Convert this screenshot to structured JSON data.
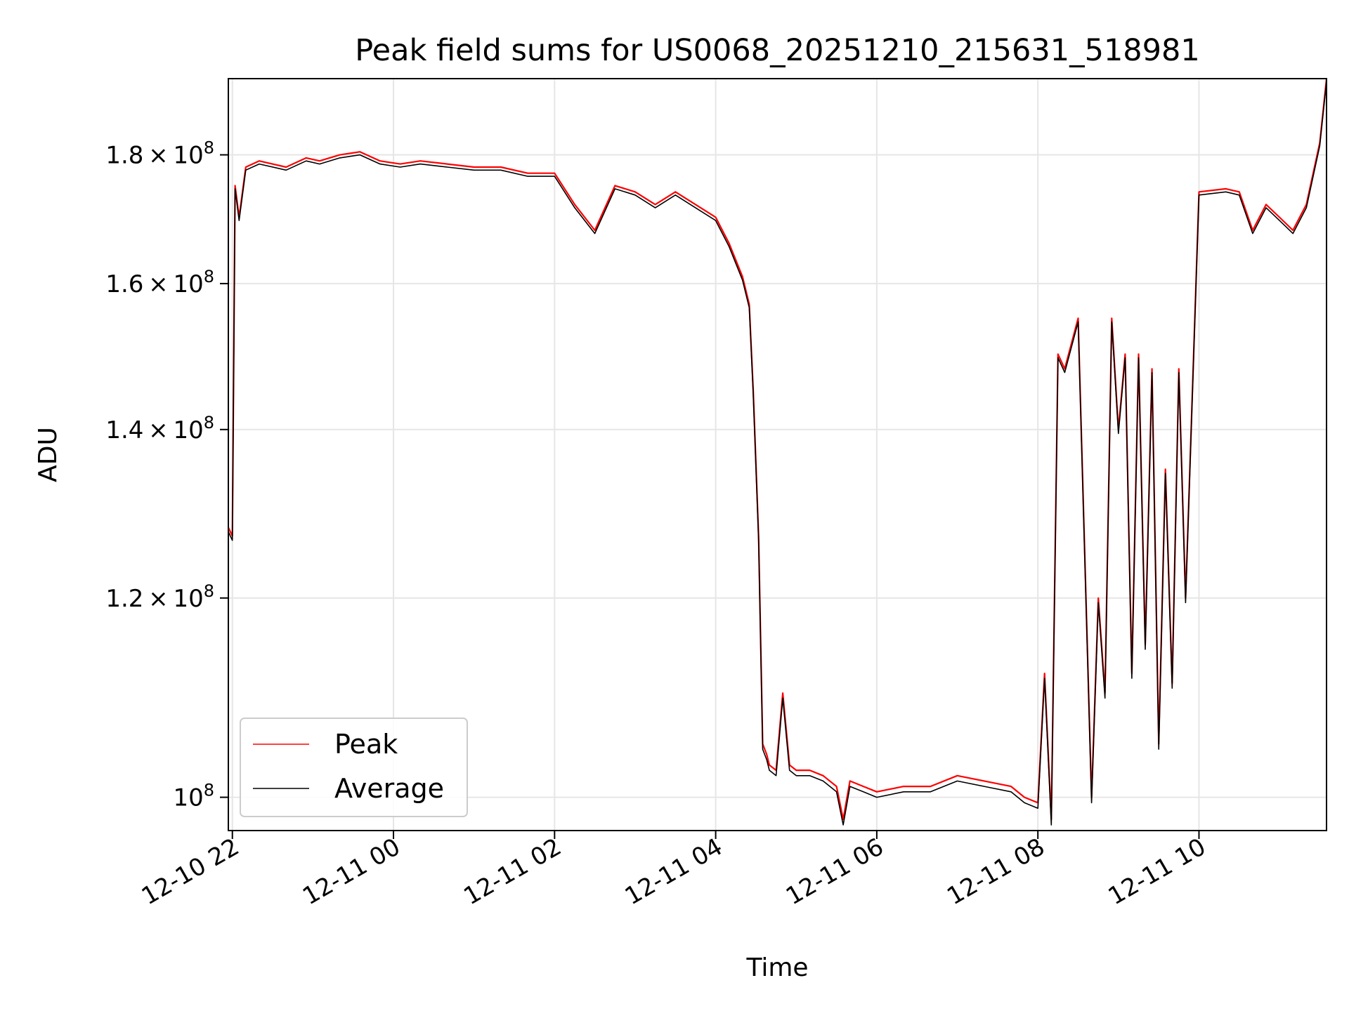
{
  "chart_data": {
    "type": "line",
    "title": "Peak field sums for US0068_20251210_215631_518981",
    "xlabel": "Time",
    "ylabel": "ADU",
    "y_scale": "log",
    "xlim": [
      "2025-12-10 21:57",
      "2025-12-11 11:35"
    ],
    "ylim": [
      97000000,
      193000000
    ],
    "grid": true,
    "legend_position": "lower-left",
    "x_ticks": [
      {
        "value": "2025-12-10 22:00",
        "label": "12-10 22"
      },
      {
        "value": "2025-12-11 00:00",
        "label": "12-11 00"
      },
      {
        "value": "2025-12-11 02:00",
        "label": "12-11 02"
      },
      {
        "value": "2025-12-11 04:00",
        "label": "12-11 04"
      },
      {
        "value": "2025-12-11 06:00",
        "label": "12-11 06"
      },
      {
        "value": "2025-12-11 08:00",
        "label": "12-11 08"
      },
      {
        "value": "2025-12-11 10:00",
        "label": "12-11 10"
      }
    ],
    "y_ticks": [
      {
        "value": 100000000,
        "mantissa": "",
        "exponent": "8"
      },
      {
        "value": 120000000,
        "mantissa": "1.2",
        "exponent": "8"
      },
      {
        "value": 140000000,
        "mantissa": "1.4",
        "exponent": "8"
      },
      {
        "value": 160000000,
        "mantissa": "1.6",
        "exponent": "8"
      },
      {
        "value": 180000000,
        "mantissa": "1.8",
        "exponent": "8"
      }
    ],
    "series": [
      {
        "name": "Peak",
        "color": "#ff0000",
        "x": [
          "2025-12-10 21:57",
          "2025-12-10 22:00",
          "2025-12-10 22:02",
          "2025-12-10 22:05",
          "2025-12-10 22:10",
          "2025-12-10 22:20",
          "2025-12-10 22:40",
          "2025-12-10 22:55",
          "2025-12-10 23:05",
          "2025-12-10 23:20",
          "2025-12-10 23:35",
          "2025-12-10 23:50",
          "2025-12-11 00:05",
          "2025-12-11 00:20",
          "2025-12-11 00:40",
          "2025-12-11 01:00",
          "2025-12-11 01:20",
          "2025-12-11 01:40",
          "2025-12-11 02:00",
          "2025-12-11 02:15",
          "2025-12-11 02:30",
          "2025-12-11 02:45",
          "2025-12-11 03:00",
          "2025-12-11 03:15",
          "2025-12-11 03:30",
          "2025-12-11 03:45",
          "2025-12-11 04:00",
          "2025-12-11 04:10",
          "2025-12-11 04:20",
          "2025-12-11 04:25",
          "2025-12-11 04:28",
          "2025-12-11 04:32",
          "2025-12-11 04:35",
          "2025-12-11 04:38",
          "2025-12-11 04:40",
          "2025-12-11 04:45",
          "2025-12-11 04:50",
          "2025-12-11 04:55",
          "2025-12-11 05:00",
          "2025-12-11 05:10",
          "2025-12-11 05:20",
          "2025-12-11 05:30",
          "2025-12-11 05:35",
          "2025-12-11 05:40",
          "2025-12-11 05:50",
          "2025-12-11 06:00",
          "2025-12-11 06:20",
          "2025-12-11 06:40",
          "2025-12-11 07:00",
          "2025-12-11 07:20",
          "2025-12-11 07:40",
          "2025-12-11 07:50",
          "2025-12-11 08:00",
          "2025-12-11 08:05",
          "2025-12-11 08:10",
          "2025-12-11 08:15",
          "2025-12-11 08:20",
          "2025-12-11 08:30",
          "2025-12-11 08:40",
          "2025-12-11 08:45",
          "2025-12-11 08:50",
          "2025-12-11 08:55",
          "2025-12-11 09:00",
          "2025-12-11 09:05",
          "2025-12-11 09:10",
          "2025-12-11 09:15",
          "2025-12-11 09:20",
          "2025-12-11 09:25",
          "2025-12-11 09:30",
          "2025-12-11 09:35",
          "2025-12-11 09:40",
          "2025-12-11 09:45",
          "2025-12-11 09:50",
          "2025-12-11 10:00",
          "2025-12-11 10:20",
          "2025-12-11 10:30",
          "2025-12-11 10:40",
          "2025-12-11 10:50",
          "2025-12-11 11:00",
          "2025-12-11 11:10",
          "2025-12-11 11:20",
          "2025-12-11 11:30",
          "2025-12-11 11:35"
        ],
        "y": [
          128000000,
          127000000,
          175000000,
          170000000,
          178000000,
          179000000,
          178000000,
          179500000,
          179000000,
          180000000,
          180500000,
          179000000,
          178500000,
          179000000,
          178500000,
          178000000,
          178000000,
          177000000,
          177000000,
          172000000,
          168000000,
          175000000,
          174000000,
          172000000,
          174000000,
          172000000,
          170000000,
          166000000,
          161000000,
          157000000,
          145000000,
          127000000,
          105000000,
          104000000,
          103000000,
          102500000,
          110000000,
          103000000,
          102500000,
          102500000,
          102000000,
          101000000,
          98000000,
          101500000,
          101000000,
          100500000,
          101000000,
          101000000,
          102000000,
          101500000,
          101000000,
          100000000,
          99500000,
          112000000,
          98000000,
          150000000,
          148000000,
          155000000,
          100000000,
          120000000,
          110000000,
          155000000,
          140000000,
          150000000,
          112000000,
          150000000,
          115000000,
          148000000,
          105000000,
          135000000,
          111000000,
          148000000,
          120000000,
          174000000,
          174500000,
          174000000,
          168000000,
          172000000,
          170000000,
          168000000,
          172000000,
          182000000,
          193000000
        ]
      },
      {
        "name": "Average",
        "color": "#000000",
        "x": [
          "2025-12-10 21:57",
          "2025-12-10 22:00",
          "2025-12-10 22:02",
          "2025-12-10 22:05",
          "2025-12-10 22:10",
          "2025-12-10 22:20",
          "2025-12-10 22:40",
          "2025-12-10 22:55",
          "2025-12-10 23:05",
          "2025-12-10 23:20",
          "2025-12-10 23:35",
          "2025-12-10 23:50",
          "2025-12-11 00:05",
          "2025-12-11 00:20",
          "2025-12-11 00:40",
          "2025-12-11 01:00",
          "2025-12-11 01:20",
          "2025-12-11 01:40",
          "2025-12-11 02:00",
          "2025-12-11 02:15",
          "2025-12-11 02:30",
          "2025-12-11 02:45",
          "2025-12-11 03:00",
          "2025-12-11 03:15",
          "2025-12-11 03:30",
          "2025-12-11 03:45",
          "2025-12-11 04:00",
          "2025-12-11 04:10",
          "2025-12-11 04:20",
          "2025-12-11 04:25",
          "2025-12-11 04:28",
          "2025-12-11 04:32",
          "2025-12-11 04:35",
          "2025-12-11 04:38",
          "2025-12-11 04:40",
          "2025-12-11 04:45",
          "2025-12-11 04:50",
          "2025-12-11 04:55",
          "2025-12-11 05:00",
          "2025-12-11 05:10",
          "2025-12-11 05:20",
          "2025-12-11 05:30",
          "2025-12-11 05:35",
          "2025-12-11 05:40",
          "2025-12-11 05:50",
          "2025-12-11 06:00",
          "2025-12-11 06:20",
          "2025-12-11 06:40",
          "2025-12-11 07:00",
          "2025-12-11 07:20",
          "2025-12-11 07:40",
          "2025-12-11 07:50",
          "2025-12-11 08:00",
          "2025-12-11 08:05",
          "2025-12-11 08:10",
          "2025-12-11 08:15",
          "2025-12-11 08:20",
          "2025-12-11 08:30",
          "2025-12-11 08:40",
          "2025-12-11 08:45",
          "2025-12-11 08:50",
          "2025-12-11 08:55",
          "2025-12-11 09:00",
          "2025-12-11 09:05",
          "2025-12-11 09:10",
          "2025-12-11 09:15",
          "2025-12-11 09:20",
          "2025-12-11 09:25",
          "2025-12-11 09:30",
          "2025-12-11 09:35",
          "2025-12-11 09:40",
          "2025-12-11 09:45",
          "2025-12-11 09:50",
          "2025-12-11 10:00",
          "2025-12-11 10:20",
          "2025-12-11 10:30",
          "2025-12-11 10:40",
          "2025-12-11 10:50",
          "2025-12-11 11:00",
          "2025-12-11 11:10",
          "2025-12-11 11:20",
          "2025-12-11 11:30",
          "2025-12-11 11:35"
        ],
        "y": [
          127500000,
          126500000,
          174500000,
          169500000,
          177500000,
          178500000,
          177500000,
          179000000,
          178500000,
          179500000,
          180000000,
          178500000,
          178000000,
          178500000,
          178000000,
          177500000,
          177500000,
          176500000,
          176500000,
          171500000,
          167500000,
          174500000,
          173500000,
          171500000,
          173500000,
          171500000,
          169500000,
          165500000,
          160500000,
          156500000,
          144500000,
          126500000,
          104500000,
          103500000,
          102500000,
          102000000,
          109500000,
          102500000,
          102000000,
          102000000,
          101500000,
          100500000,
          97500000,
          101000000,
          100500000,
          100000000,
          100500000,
          100500000,
          101500000,
          101000000,
          100500000,
          99500000,
          99000000,
          111500000,
          97500000,
          149500000,
          147500000,
          154500000,
          99500000,
          119500000,
          109500000,
          154500000,
          139500000,
          149500000,
          111500000,
          149500000,
          114500000,
          147500000,
          104500000,
          134500000,
          110500000,
          147500000,
          119500000,
          173500000,
          174000000,
          173500000,
          167500000,
          171500000,
          169500000,
          167500000,
          171500000,
          181500000,
          192500000
        ]
      }
    ]
  }
}
